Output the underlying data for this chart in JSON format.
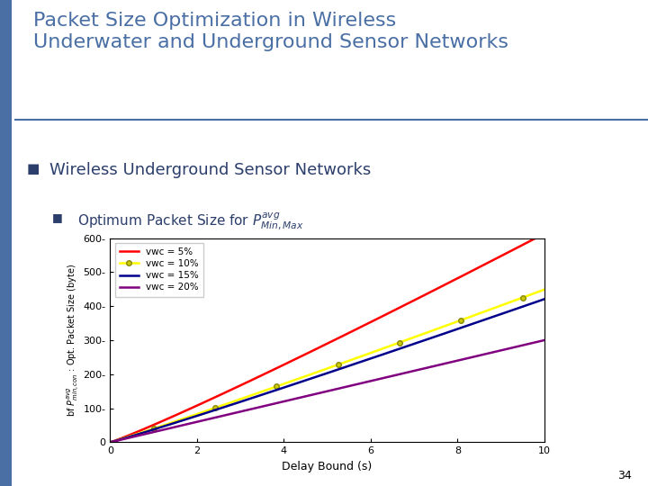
{
  "title_main": "Packet Size Optimization in Wireless\nUnderwater and Underground Sensor Networks",
  "title_main_color": "#4a6fa5",
  "subtitle": "Wireless Underground Sensor Networks",
  "subtitle_color": "#2c3e6b",
  "slide_number": "34",
  "left_bar_color": "#4a6fa5",
  "xlabel": "Delay Bound (s)",
  "ylabel": "bf $P^{avg}_{min,con}$ : Opt. Packet Size (byte)",
  "xlim": [
    0,
    10
  ],
  "ylim": [
    0,
    600
  ],
  "xticks": [
    0,
    2,
    4,
    6,
    8,
    10
  ],
  "yticks": [
    0,
    100,
    200,
    300,
    400,
    500,
    600
  ],
  "lines": [
    {
      "label": "vwc = 5%",
      "color": "#ff0000",
      "power": 1.08,
      "scale": 51.0
    },
    {
      "label": "vwc = 10%",
      "color": "#ffff00",
      "power": 1.05,
      "scale": 40.0,
      "marker": "o",
      "marker_color": "#cccc00"
    },
    {
      "label": "vwc = 15%",
      "color": "#00008b",
      "power": 1.05,
      "scale": 37.5
    },
    {
      "label": "vwc = 20%",
      "color": "#800080",
      "power": 1.0,
      "scale": 30.0
    }
  ],
  "background_color": "#ffffff",
  "plot_bg_color": "#ffffff",
  "font_family": "DejaVu Sans"
}
